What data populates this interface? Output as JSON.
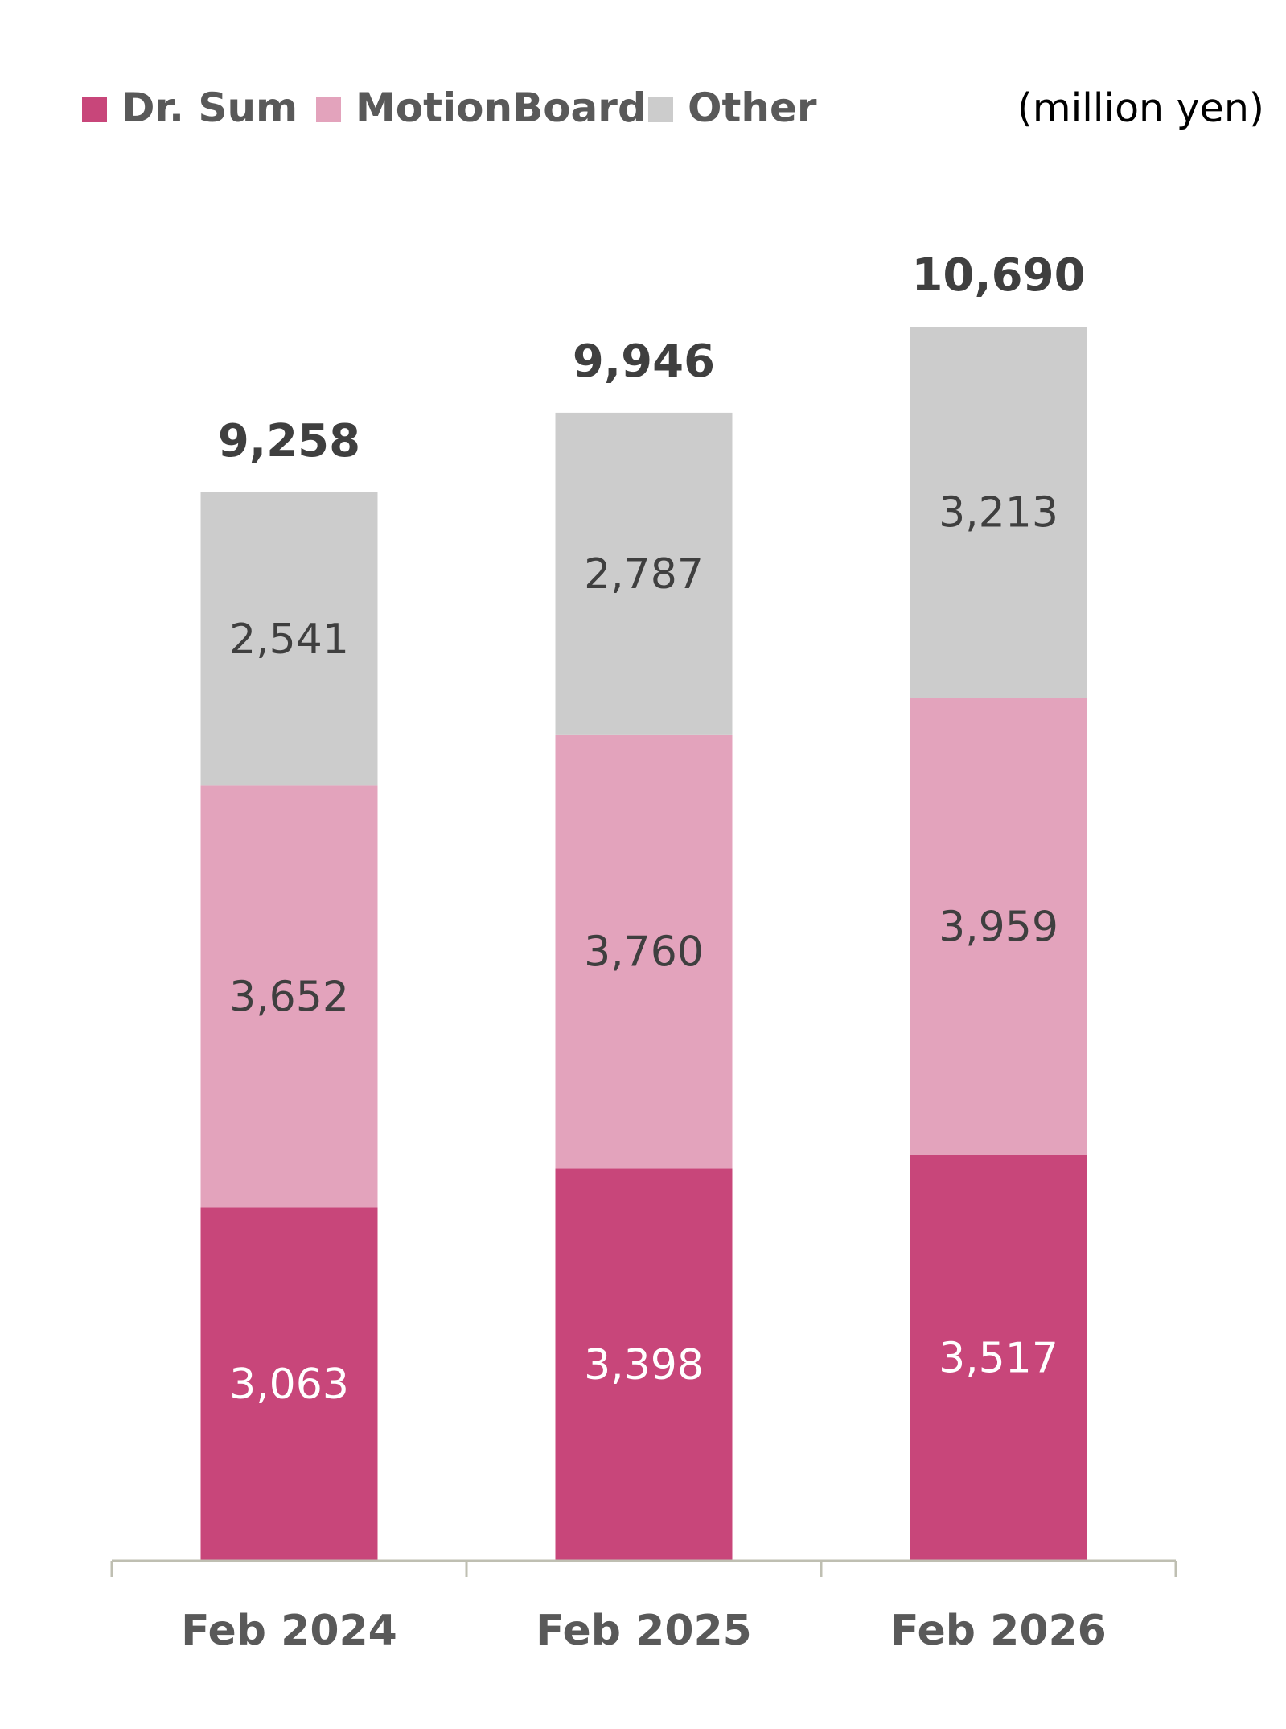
{
  "unit_label": "(million yen)",
  "legend": [
    {
      "label": "Dr. Sum",
      "color": "#c8467a",
      "icon": "square-swatch"
    },
    {
      "label": "MotionBoard",
      "color": "#e3a3bc",
      "icon": "square-swatch"
    },
    {
      "label": "Other",
      "color": "#cccccc",
      "icon": "square-swatch"
    }
  ],
  "chart_data": {
    "type": "bar",
    "stacked": true,
    "categories": [
      "Feb 2024",
      "Feb 2025",
      "Feb 2026"
    ],
    "series": [
      {
        "name": "Dr. Sum",
        "values": [
          3063,
          3398,
          3517
        ],
        "color": "#c8467a",
        "label_color": "#ffffff"
      },
      {
        "name": "MotionBoard",
        "values": [
          3652,
          3760,
          3959
        ],
        "color": "#e3a3bc",
        "label_color": "#3f3f3f"
      },
      {
        "name": "Other",
        "values": [
          2541,
          2787,
          3213
        ],
        "color": "#cccccc",
        "label_color": "#3f3f3f"
      }
    ],
    "segment_labels": [
      [
        "3,063",
        "3,398",
        "3,517"
      ],
      [
        "3,652",
        "3,760",
        "3,959"
      ],
      [
        "2,541",
        "2,787",
        "3,213"
      ]
    ],
    "totals": [
      9258,
      9946,
      10690
    ],
    "total_labels": [
      "9,258",
      "9,946",
      "10,690"
    ],
    "ylim": [
      0,
      10690
    ],
    "grid": false,
    "legend_position": "top-left",
    "title": "",
    "xlabel": "",
    "ylabel": ""
  }
}
